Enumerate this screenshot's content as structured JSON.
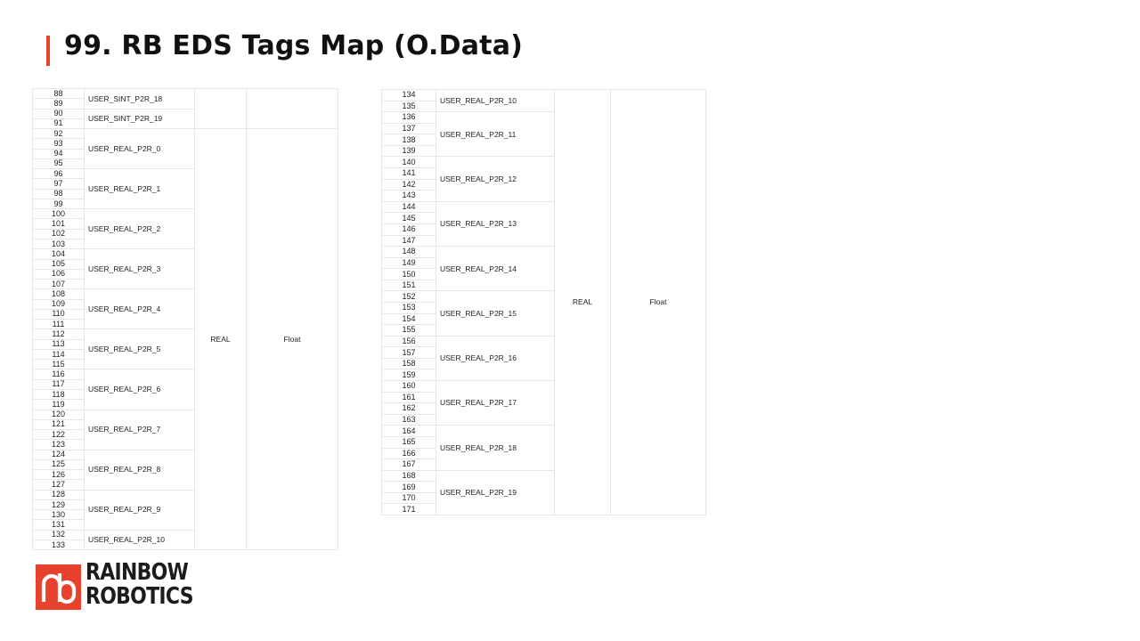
{
  "page": {
    "title": "99. RB EDS Tags Map (O.Data)",
    "accent_color": "#e8412d"
  },
  "left_table": {
    "groups": [
      {
        "name": "USER_SINT_P2R_18",
        "indices": [
          88,
          89
        ]
      },
      {
        "name": "USER_SINT_P2R_19",
        "indices": [
          90,
          91
        ]
      },
      {
        "name": "USER_REAL_P2R_0",
        "indices": [
          92,
          93,
          94,
          95
        ]
      },
      {
        "name": "USER_REAL_P2R_1",
        "indices": [
          96,
          97,
          98,
          99
        ]
      },
      {
        "name": "USER_REAL_P2R_2",
        "indices": [
          100,
          101,
          102,
          103
        ]
      },
      {
        "name": "USER_REAL_P2R_3",
        "indices": [
          104,
          105,
          106,
          107
        ]
      },
      {
        "name": "USER_REAL_P2R_4",
        "indices": [
          108,
          109,
          110,
          111
        ]
      },
      {
        "name": "USER_REAL_P2R_5",
        "indices": [
          112,
          113,
          114,
          115
        ]
      },
      {
        "name": "USER_REAL_P2R_6",
        "indices": [
          116,
          117,
          118,
          119
        ]
      },
      {
        "name": "USER_REAL_P2R_7",
        "indices": [
          120,
          121,
          122,
          123
        ]
      },
      {
        "name": "USER_REAL_P2R_8",
        "indices": [
          124,
          125,
          126,
          127
        ]
      },
      {
        "name": "USER_REAL_P2R_9",
        "indices": [
          128,
          129,
          130,
          131
        ]
      },
      {
        "name": "USER_REAL_P2R_10",
        "indices": [
          132,
          133
        ]
      }
    ],
    "type_blocks": [
      {
        "type": "",
        "format": "",
        "rows": 4
      },
      {
        "type": "REAL",
        "format": "Float",
        "rows": 42
      }
    ]
  },
  "right_table": {
    "groups": [
      {
        "name": "USER_REAL_P2R_10",
        "indices": [
          134,
          135
        ]
      },
      {
        "name": "USER_REAL_P2R_11",
        "indices": [
          136,
          137,
          138,
          139
        ]
      },
      {
        "name": "USER_REAL_P2R_12",
        "indices": [
          140,
          141,
          142,
          143
        ]
      },
      {
        "name": "USER_REAL_P2R_13",
        "indices": [
          144,
          145,
          146,
          147
        ]
      },
      {
        "name": "USER_REAL_P2R_14",
        "indices": [
          148,
          149,
          150,
          151
        ]
      },
      {
        "name": "USER_REAL_P2R_15",
        "indices": [
          152,
          153,
          154,
          155
        ]
      },
      {
        "name": "USER_REAL_P2R_16",
        "indices": [
          156,
          157,
          158,
          159
        ]
      },
      {
        "name": "USER_REAL_P2R_17",
        "indices": [
          160,
          161,
          162,
          163
        ]
      },
      {
        "name": "USER_REAL_P2R_18",
        "indices": [
          164,
          165,
          166,
          167
        ]
      },
      {
        "name": "USER_REAL_P2R_19",
        "indices": [
          168,
          169,
          170,
          171
        ]
      }
    ],
    "type_blocks": [
      {
        "type": "REAL",
        "format": "Float",
        "rows": 38
      }
    ]
  },
  "logo": {
    "brand_color": "#e8412d",
    "icon": "rb-logo-icon",
    "line1": "RAINBOW",
    "line2": "ROBOTICS"
  }
}
